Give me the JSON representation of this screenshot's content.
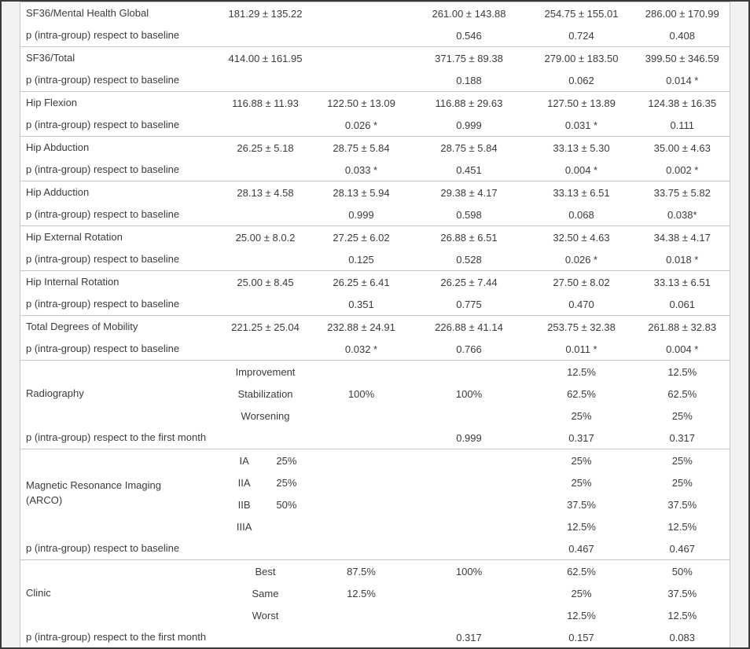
{
  "theme": {
    "frame_color": "#3a3a3a",
    "gutter_background": "#f1f1f1",
    "table_background": "#ffffff",
    "separator_color": "#c6c6c6",
    "text_color": "#3b3b3b"
  },
  "table": {
    "groups": [
      {
        "rows": [
          {
            "cells": [
              {
                "t": "SF36/Mental Health Global",
                "cls": "lbl"
              },
              {
                "t": "181.29 ± 135.22"
              },
              {
                "t": ""
              },
              {
                "t": "261.00 ± 143.88"
              },
              {
                "t": "254.75 ± 155.01"
              },
              {
                "t": "286.00 ± 170.99"
              }
            ]
          },
          {
            "cells": [
              {
                "t": "p (intra-group) respect to baseline",
                "cls": "lbl"
              },
              {
                "t": ""
              },
              {
                "t": ""
              },
              {
                "t": "0.546"
              },
              {
                "t": "0.724"
              },
              {
                "t": "0.408"
              }
            ]
          }
        ]
      },
      {
        "rows": [
          {
            "cells": [
              {
                "t": "SF36/Total",
                "cls": "lbl"
              },
              {
                "t": "414.00 ± 161.95"
              },
              {
                "t": ""
              },
              {
                "t": "371.75 ± 89.38"
              },
              {
                "t": "279.00 ± 183.50"
              },
              {
                "t": "399.50 ± 346.59"
              }
            ]
          },
          {
            "cells": [
              {
                "t": "p (intra-group) respect to baseline",
                "cls": "lbl"
              },
              {
                "t": ""
              },
              {
                "t": ""
              },
              {
                "t": "0.188"
              },
              {
                "t": "0.062"
              },
              {
                "t": "0.014 *"
              }
            ]
          }
        ]
      },
      {
        "rows": [
          {
            "cells": [
              {
                "t": "Hip Flexion",
                "cls": "lbl"
              },
              {
                "t": "116.88 ± 11.93"
              },
              {
                "t": "122.50 ± 13.09"
              },
              {
                "t": "116.88 ± 29.63"
              },
              {
                "t": "127.50 ± 13.89"
              },
              {
                "t": "124.38 ± 16.35"
              }
            ]
          },
          {
            "cells": [
              {
                "t": "p (intra-group) respect to baseline",
                "cls": "lbl"
              },
              {
                "t": ""
              },
              {
                "t": "0.026 *"
              },
              {
                "t": "0.999"
              },
              {
                "t": "0.031 *"
              },
              {
                "t": "0.111"
              }
            ]
          }
        ]
      },
      {
        "rows": [
          {
            "cells": [
              {
                "t": "Hip Abduction",
                "cls": "lbl"
              },
              {
                "t": "26.25 ± 5.18"
              },
              {
                "t": "28.75 ± 5.84"
              },
              {
                "t": "28.75 ± 5.84"
              },
              {
                "t": "33.13 ± 5.30"
              },
              {
                "t": "35.00 ± 4.63"
              }
            ]
          },
          {
            "cells": [
              {
                "t": "p (intra-group) respect to baseline",
                "cls": "lbl"
              },
              {
                "t": ""
              },
              {
                "t": "0.033 *"
              },
              {
                "t": "0.451"
              },
              {
                "t": "0.004 *"
              },
              {
                "t": "0.002 *"
              }
            ]
          }
        ]
      },
      {
        "rows": [
          {
            "cells": [
              {
                "t": "Hip Adduction",
                "cls": "lbl"
              },
              {
                "t": "28.13 ± 4.58"
              },
              {
                "t": "28.13 ± 5.94"
              },
              {
                "t": "29.38 ± 4.17"
              },
              {
                "t": "33.13 ± 6.51"
              },
              {
                "t": "33.75 ± 5.82"
              }
            ]
          },
          {
            "cells": [
              {
                "t": "p (intra-group) respect to baseline",
                "cls": "lbl"
              },
              {
                "t": ""
              },
              {
                "t": "0.999"
              },
              {
                "t": "0.598"
              },
              {
                "t": "0.068"
              },
              {
                "t": "0.038*"
              }
            ]
          }
        ]
      },
      {
        "rows": [
          {
            "cells": [
              {
                "t": "Hip External Rotation",
                "cls": "lbl"
              },
              {
                "t": "25.00 ± 8.0.2"
              },
              {
                "t": "27.25 ± 6.02"
              },
              {
                "t": "26.88 ± 6.51"
              },
              {
                "t": "32.50 ± 4.63"
              },
              {
                "t": "34.38 ± 4.17"
              }
            ]
          },
          {
            "cells": [
              {
                "t": "p (intra-group) respect to baseline",
                "cls": "lbl"
              },
              {
                "t": ""
              },
              {
                "t": "0.125"
              },
              {
                "t": "0.528"
              },
              {
                "t": "0.026 *"
              },
              {
                "t": "0.018 *"
              }
            ]
          }
        ]
      },
      {
        "rows": [
          {
            "cells": [
              {
                "t": "Hip Internal Rotation",
                "cls": "lbl"
              },
              {
                "t": "25.00 ± 8.45"
              },
              {
                "t": "26.25 ± 6.41"
              },
              {
                "t": "26.25 ± 7.44"
              },
              {
                "t": "27.50 ± 8.02"
              },
              {
                "t": "33.13 ± 6.51"
              }
            ]
          },
          {
            "cells": [
              {
                "t": "p (intra-group) respect to baseline",
                "cls": "lbl"
              },
              {
                "t": ""
              },
              {
                "t": "0.351"
              },
              {
                "t": "0.775"
              },
              {
                "t": "0.470"
              },
              {
                "t": "0.061"
              }
            ]
          }
        ]
      },
      {
        "rows": [
          {
            "cells": [
              {
                "t": "Total Degrees of Mobility",
                "cls": "lbl"
              },
              {
                "t": "221.25 ± 25.04"
              },
              {
                "t": "232.88 ± 24.91"
              },
              {
                "t": "226.88 ± 41.14"
              },
              {
                "t": "253.75 ± 32.38"
              },
              {
                "t": "261.88 ± 32.83"
              }
            ]
          },
          {
            "cells": [
              {
                "t": "p (intra-group) respect to baseline",
                "cls": "lbl"
              },
              {
                "t": ""
              },
              {
                "t": "0.032 *"
              },
              {
                "t": "0.766"
              },
              {
                "t": "0.011 *"
              },
              {
                "t": "0.004 *"
              }
            ]
          }
        ]
      },
      {
        "rows": [
          {
            "cells": [
              {
                "t": "Radiography",
                "cls": "lbl",
                "rs": 3
              },
              {
                "t": "Improvement"
              },
              {
                "t": ""
              },
              {
                "t": ""
              },
              {
                "t": "12.5%"
              },
              {
                "t": "12.5%"
              }
            ]
          },
          {
            "cells": [
              {
                "t": "Stabilization"
              },
              {
                "t": "100%"
              },
              {
                "t": "100%"
              },
              {
                "t": "62.5%"
              },
              {
                "t": "62.5%"
              }
            ]
          },
          {
            "cells": [
              {
                "t": "Worsening"
              },
              {
                "t": ""
              },
              {
                "t": ""
              },
              {
                "t": "25%"
              },
              {
                "t": "25%"
              }
            ]
          },
          {
            "cells": [
              {
                "t": "p (intra-group) respect to the first month",
                "cls": "lbl"
              },
              {
                "t": ""
              },
              {
                "t": ""
              },
              {
                "t": "0.999"
              },
              {
                "t": "0.317"
              },
              {
                "t": "0.317"
              }
            ]
          }
        ]
      },
      {
        "rows": [
          {
            "cells": [
              {
                "t": "Magnetic Resonance Imaging\n(ARCO)",
                "cls": "lbl",
                "rs": 4
              },
              {
                "pair": [
                  "IA",
                  "25%"
                ]
              },
              {
                "t": ""
              },
              {
                "t": ""
              },
              {
                "t": "25%"
              },
              {
                "t": "25%"
              }
            ]
          },
          {
            "cells": [
              {
                "pair": [
                  "IIA",
                  "25%"
                ]
              },
              {
                "t": ""
              },
              {
                "t": ""
              },
              {
                "t": "25%"
              },
              {
                "t": "25%"
              }
            ]
          },
          {
            "cells": [
              {
                "pair": [
                  "IIB",
                  "50%"
                ]
              },
              {
                "t": ""
              },
              {
                "t": ""
              },
              {
                "t": "37.5%"
              },
              {
                "t": "37.5%"
              }
            ]
          },
          {
            "cells": [
              {
                "pair": [
                  "IIIA",
                  ""
                ]
              },
              {
                "t": ""
              },
              {
                "t": ""
              },
              {
                "t": "12.5%"
              },
              {
                "t": "12.5%"
              }
            ]
          },
          {
            "cells": [
              {
                "t": "p (intra-group) respect to baseline",
                "cls": "lbl"
              },
              {
                "t": ""
              },
              {
                "t": ""
              },
              {
                "t": ""
              },
              {
                "t": "0.467"
              },
              {
                "t": "0.467"
              }
            ]
          }
        ]
      },
      {
        "rows": [
          {
            "cells": [
              {
                "t": "Clinic",
                "cls": "lbl",
                "rs": 3
              },
              {
                "t": "Best"
              },
              {
                "t": "87.5%"
              },
              {
                "t": "100%"
              },
              {
                "t": "62.5%"
              },
              {
                "t": "50%"
              }
            ]
          },
          {
            "cells": [
              {
                "t": "Same"
              },
              {
                "t": "12.5%"
              },
              {
                "t": ""
              },
              {
                "t": "25%"
              },
              {
                "t": "37.5%"
              }
            ]
          },
          {
            "cells": [
              {
                "t": "Worst"
              },
              {
                "t": ""
              },
              {
                "t": ""
              },
              {
                "t": "12.5%"
              },
              {
                "t": "12.5%"
              }
            ]
          },
          {
            "cells": [
              {
                "t": "p (intra-group) respect to the first month",
                "cls": "lbl"
              },
              {
                "t": ""
              },
              {
                "t": ""
              },
              {
                "t": "0.317"
              },
              {
                "t": "0.157"
              },
              {
                "t": "0.083"
              }
            ]
          }
        ]
      }
    ]
  }
}
